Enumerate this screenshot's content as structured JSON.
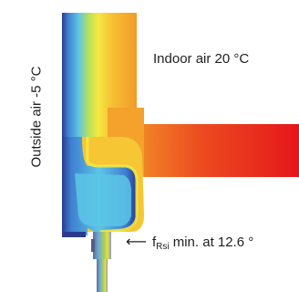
{
  "labels": {
    "indoor": "Indoor air 20 °C",
    "outdoor": "Outside air -5 °C",
    "frsi_arrow": "⟵",
    "frsi_f": "f",
    "frsi_sub": "Rsi",
    "frsi_text": " min. at 12.6 °"
  },
  "colors": {
    "cold_outer": "#2b3a8f",
    "cold": "#3f7fd0",
    "cool": "#5cc6e6",
    "neutral": "#b8e05a",
    "warm": "#f4e842",
    "hot": "#f29a2a",
    "hottest": "#e5161b"
  }
}
